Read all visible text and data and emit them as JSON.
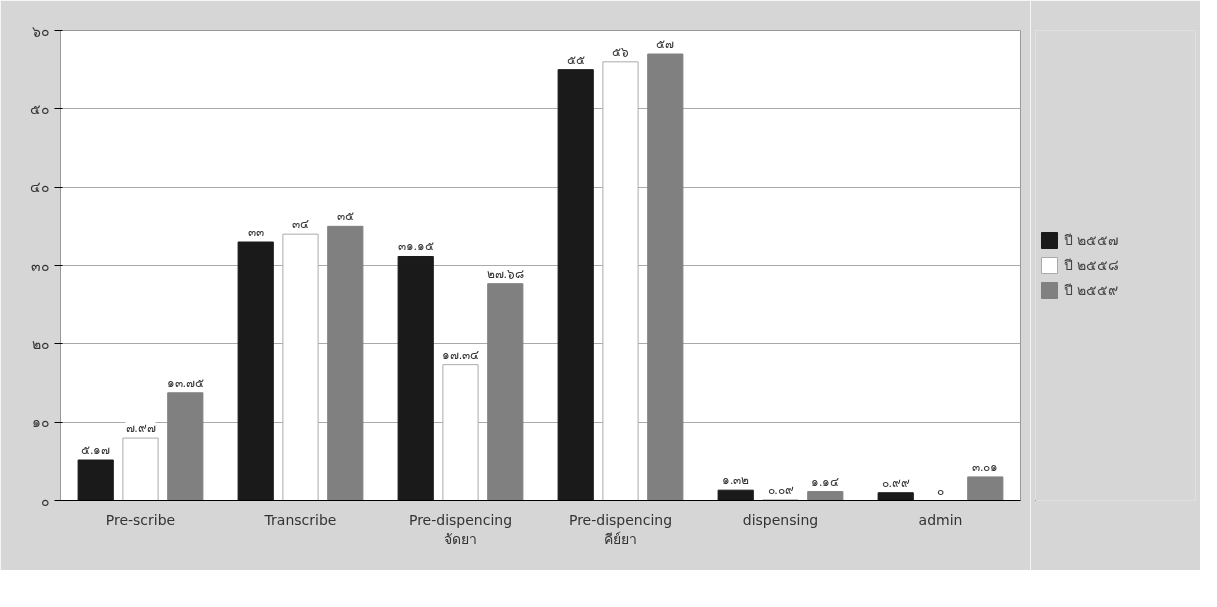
{
  "chart_data": {
    "type": "bar",
    "categories": [
      "Pre-scribe",
      "Transcribe",
      "Pre-dispencing\nจัดยา",
      "Pre-dispencing\nคีย์ยา",
      "dispensing",
      "admin"
    ],
    "series": [
      {
        "name": "ปี ๒๕๕๗",
        "color": "#1a1a1a",
        "values": [
          5.17,
          33,
          31.15,
          55,
          1.32,
          0.99
        ],
        "value_labels": [
          "๕.๑๗",
          "๓๓",
          "๓๑.๑๕",
          "๕๕",
          "๑.๓๒",
          "๐.๙๙"
        ]
      },
      {
        "name": "ปี ๒๕๕๘",
        "color": "#ffffff",
        "values": [
          7.97,
          34,
          17.34,
          56,
          0.09,
          0
        ],
        "value_labels": [
          "๗.๙๗",
          "๓๔",
          "๑๗.๓๔",
          "๕๖",
          "๐.๐๙",
          "๐"
        ]
      },
      {
        "name": "ปี ๒๕๕๙",
        "color": "#808080",
        "values": [
          13.75,
          35,
          27.68,
          57,
          1.14,
          3.01
        ],
        "value_labels": [
          "๑๓.๗๕",
          "๓๕",
          "๒๗.๖๘",
          "๕๗",
          "๑.๑๔",
          "๓.๐๑"
        ]
      }
    ],
    "ylim": [
      0,
      60
    ],
    "yticks": [
      {
        "value": 0,
        "label": "๐"
      },
      {
        "value": 10,
        "label": "๑๐"
      },
      {
        "value": 20,
        "label": "๒๐"
      },
      {
        "value": 30,
        "label": "๓๐"
      },
      {
        "value": 40,
        "label": "๔๐"
      },
      {
        "value": 50,
        "label": "๕๐"
      },
      {
        "value": 60,
        "label": "๖๐"
      }
    ],
    "grid": "y",
    "legend": "right"
  }
}
